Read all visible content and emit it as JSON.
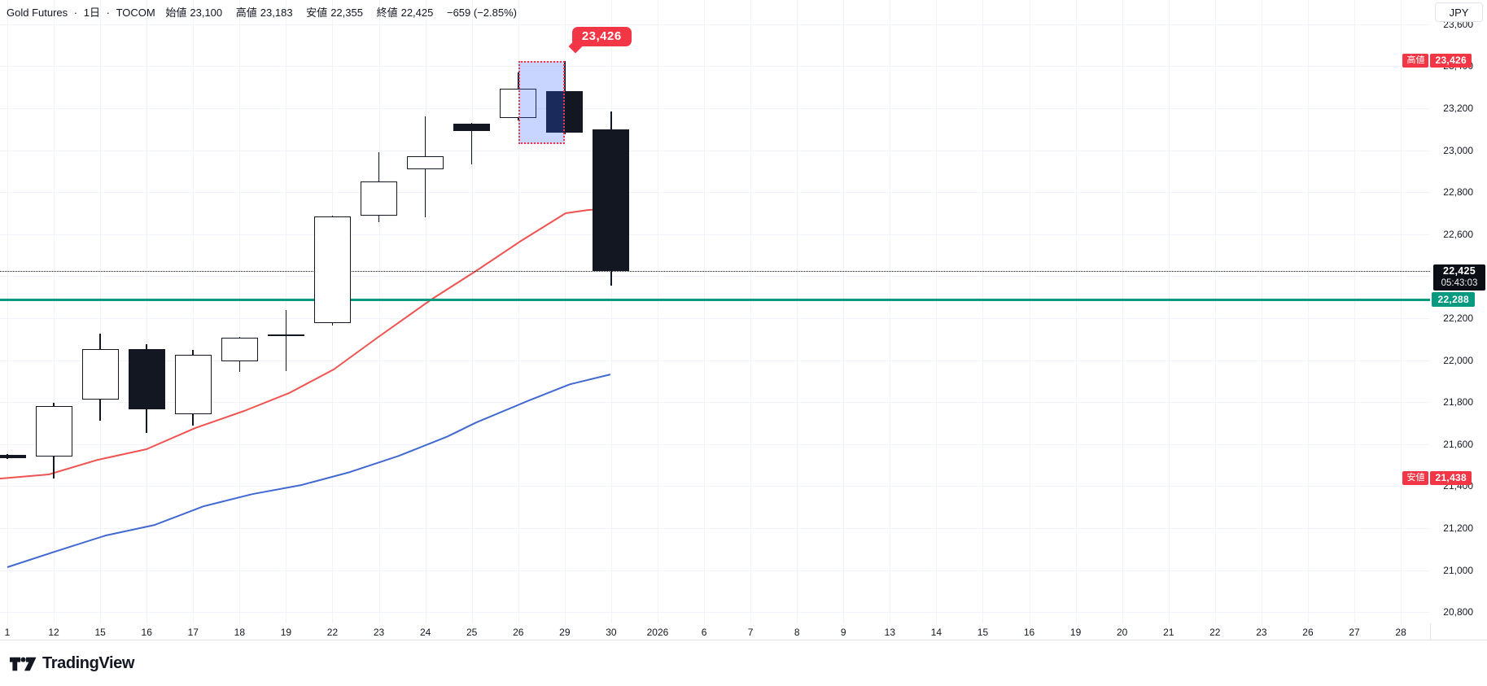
{
  "header": {
    "symbol": "Gold Futures",
    "separator": "·",
    "interval": "1日",
    "exchange": "TOCOM",
    "ohlc": [
      {
        "label": "始値",
        "value": "23,100"
      },
      {
        "label": "高値",
        "value": "23,183"
      },
      {
        "label": "安値",
        "value": "22,355"
      },
      {
        "label": "終値",
        "value": "22,425"
      }
    ],
    "change": "−659 (−2.85%)"
  },
  "price_axis": {
    "currency_button": "JPY",
    "ticks": [
      {
        "label": "23,600",
        "price": 23600
      },
      {
        "label": "23,400",
        "price": 23400
      },
      {
        "label": "23,200",
        "price": 23200
      },
      {
        "label": "23,000",
        "price": 23000
      },
      {
        "label": "22,800",
        "price": 22800
      },
      {
        "label": "22,600",
        "price": 22600
      },
      {
        "label": "22,200",
        "price": 22200
      },
      {
        "label": "22,000",
        "price": 22000
      },
      {
        "label": "21,800",
        "price": 21800
      },
      {
        "label": "21,600",
        "price": 21600
      },
      {
        "label": "21,400",
        "price": 21400
      },
      {
        "label": "21,200",
        "price": 21200
      },
      {
        "label": "21,000",
        "price": 21000
      },
      {
        "label": "20,800",
        "price": 20800
      }
    ]
  },
  "time_axis": {
    "ticks": [
      {
        "label": "1",
        "slot": 0
      },
      {
        "label": "12",
        "slot": 1
      },
      {
        "label": "15",
        "slot": 2
      },
      {
        "label": "16",
        "slot": 3
      },
      {
        "label": "17",
        "slot": 4
      },
      {
        "label": "18",
        "slot": 5
      },
      {
        "label": "19",
        "slot": 6
      },
      {
        "label": "22",
        "slot": 7
      },
      {
        "label": "23",
        "slot": 8
      },
      {
        "label": "24",
        "slot": 9
      },
      {
        "label": "25",
        "slot": 10
      },
      {
        "label": "26",
        "slot": 11
      },
      {
        "label": "29",
        "slot": 12
      },
      {
        "label": "30",
        "slot": 13
      },
      {
        "label": "2026",
        "slot": 14
      },
      {
        "label": "6",
        "slot": 15
      },
      {
        "label": "7",
        "slot": 16
      },
      {
        "label": "8",
        "slot": 17
      },
      {
        "label": "9",
        "slot": 18
      },
      {
        "label": "13",
        "slot": 19
      },
      {
        "label": "14",
        "slot": 20
      },
      {
        "label": "15",
        "slot": 21
      },
      {
        "label": "16",
        "slot": 22
      },
      {
        "label": "19",
        "slot": 23
      },
      {
        "label": "20",
        "slot": 24
      },
      {
        "label": "21",
        "slot": 25
      },
      {
        "label": "22",
        "slot": 26
      },
      {
        "label": "23",
        "slot": 27
      },
      {
        "label": "26",
        "slot": 28
      },
      {
        "label": "27",
        "slot": 29
      },
      {
        "label": "28",
        "slot": 30
      }
    ]
  },
  "chart_data": {
    "type": "candlestick",
    "title": "Gold Futures · 1日 · TOCOM",
    "ylabel": "JPY",
    "y_visible_range": [
      20750,
      23680
    ],
    "grid": true,
    "candles": [
      {
        "date": "1",
        "slot": 0,
        "open": 21547,
        "high": 21552,
        "low": 21528,
        "close": 21532
      },
      {
        "date": "12",
        "slot": 1,
        "open": 21541,
        "high": 21795,
        "low": 21438,
        "close": 21781
      },
      {
        "date": "15",
        "slot": 2,
        "open": 21812,
        "high": 22126,
        "low": 21712,
        "close": 22053
      },
      {
        "date": "16",
        "slot": 3,
        "open": 22053,
        "high": 22076,
        "low": 21654,
        "close": 21766
      },
      {
        "date": "17",
        "slot": 4,
        "open": 21743,
        "high": 22049,
        "low": 21688,
        "close": 22026
      },
      {
        "date": "18",
        "slot": 5,
        "open": 21995,
        "high": 22110,
        "low": 21944,
        "close": 22107
      },
      {
        "date": "19",
        "slot": 6,
        "open": 22113,
        "high": 22239,
        "low": 21948,
        "close": 22121
      },
      {
        "date": "22",
        "slot": 7,
        "open": 22177,
        "high": 22690,
        "low": 22165,
        "close": 22684
      },
      {
        "date": "23",
        "slot": 8,
        "open": 22688,
        "high": 22991,
        "low": 22657,
        "close": 22851
      },
      {
        "date": "24",
        "slot": 9,
        "open": 22909,
        "high": 23161,
        "low": 22681,
        "close": 22971
      },
      {
        "date": "25",
        "slot": 10,
        "open": 23126,
        "high": 23130,
        "low": 22933,
        "close": 23092
      },
      {
        "date": "26",
        "slot": 11,
        "open": 23153,
        "high": 23371,
        "low": 23142,
        "close": 23293
      },
      {
        "date": "29",
        "slot": 12,
        "open": 23281,
        "high": 23426,
        "low": 23076,
        "close": 23084
      },
      {
        "date": "30",
        "slot": 13,
        "open": 23100,
        "high": 23183,
        "low": 22355,
        "close": 22425
      }
    ],
    "ma_fast": {
      "color": "#ef5350",
      "points": [
        [
          0,
          21436
        ],
        [
          60,
          21456
        ],
        [
          120,
          21525
        ],
        [
          180,
          21576
        ],
        [
          240,
          21677
        ],
        [
          300,
          21758
        ],
        [
          355,
          21843
        ],
        [
          410,
          21956
        ],
        [
          465,
          22111
        ],
        [
          530,
          22289
        ],
        [
          585,
          22425
        ],
        [
          640,
          22568
        ],
        [
          695,
          22700
        ],
        [
          722,
          22715
        ],
        [
          752,
          22723
        ]
      ]
    },
    "ma_slow": {
      "color": "#4169d1",
      "points": [
        [
          9,
          21014
        ],
        [
          70,
          21091
        ],
        [
          130,
          21165
        ],
        [
          190,
          21215
        ],
        [
          250,
          21304
        ],
        [
          310,
          21362
        ],
        [
          370,
          21405
        ],
        [
          430,
          21467
        ],
        [
          490,
          21544
        ],
        [
          550,
          21637
        ],
        [
          585,
          21703
        ],
        [
          650,
          21808
        ],
        [
          700,
          21885
        ],
        [
          750,
          21932
        ]
      ]
    },
    "support_line": {
      "price": 22288,
      "color": "#089981",
      "label": "22,288"
    },
    "last_price": {
      "price": 22425,
      "label": "22,425",
      "countdown": "05:43:03"
    },
    "period_high": {
      "label": "高値",
      "value": "23,426",
      "price": 23426
    },
    "period_low": {
      "label": "安値",
      "value": "21,438",
      "price": 21438
    },
    "callout": {
      "text": "23,426",
      "points_to_price": 23426,
      "points_to_slot": 12
    },
    "highlight": {
      "from_slot": 11,
      "to_slot": 12,
      "top_price": 23426,
      "bottom_price": 23030
    },
    "legend_position": "none",
    "colors": {
      "bull_body": "#ffffff",
      "bear_body": "#131722",
      "outline": "#131722",
      "accent_red": "#f23645",
      "accent_green": "#089981",
      "grid": "#f0f3fa"
    }
  },
  "logo": {
    "text": "TradingView"
  }
}
